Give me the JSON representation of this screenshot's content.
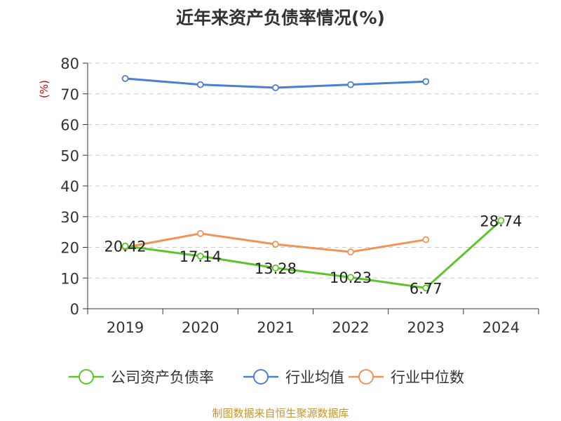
{
  "chart_data": {
    "type": "line",
    "title": "近年来资产负债率情况(%)",
    "ylabel": "(%)",
    "categories": [
      "2019",
      "2020",
      "2021",
      "2022",
      "2023",
      "2024"
    ],
    "ylim": [
      0,
      80
    ],
    "yticks": [
      "0",
      "10",
      "20",
      "30",
      "40",
      "50",
      "60",
      "70",
      "80"
    ],
    "grid": true,
    "legend_position": "bottom",
    "series": [
      {
        "name": "公司资产负债率",
        "color": "#5cc52a",
        "values": [
          20.42,
          17.14,
          13.28,
          10.23,
          6.77,
          28.74
        ],
        "labels": [
          "20.42",
          "17.14",
          "13.28",
          "10.23",
          "6.77",
          "28.74"
        ]
      },
      {
        "name": "行业均值",
        "color": "#4a7fd4",
        "values": [
          75,
          73,
          72,
          73,
          74,
          null
        ]
      },
      {
        "name": "行业中位数",
        "color": "#f39257",
        "values": [
          20,
          24.5,
          21,
          18.5,
          22.5,
          null
        ]
      }
    ]
  },
  "footer": "制图数据来自恒生聚源数据库"
}
